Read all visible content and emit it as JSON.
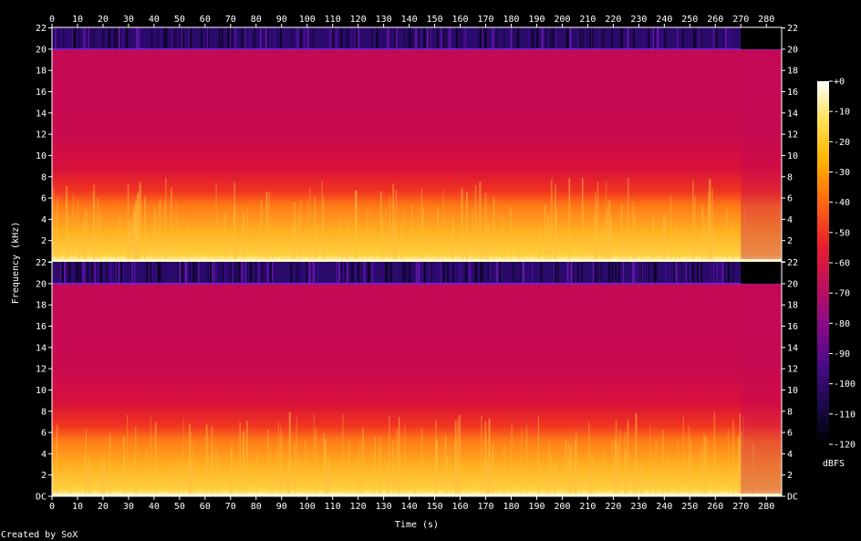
{
  "chart_data": {
    "type": "heatmap",
    "title": "",
    "xlabel": "Time (s)",
    "ylabel": "Frequency (kHz)",
    "xlim": [
      0,
      286
    ],
    "ylim": [
      0,
      22.05
    ],
    "x_ticks": [
      "0",
      "10",
      "20",
      "30",
      "40",
      "50",
      "60",
      "70",
      "80",
      "90",
      "100",
      "110",
      "120",
      "130",
      "140",
      "150",
      "160",
      "170",
      "180",
      "190",
      "200",
      "210",
      "220",
      "230",
      "240",
      "250",
      "260",
      "270",
      "280"
    ],
    "y_ticks": [
      "DC",
      "2",
      "4",
      "6",
      "8",
      "10",
      "12",
      "14",
      "16",
      "18",
      "20",
      "22"
    ],
    "channels": [
      {
        "name": "",
        "content_top_khz": 20,
        "band_edges_khz": [
          0.5,
          3,
          5.5,
          8
        ]
      },
      {
        "name": "",
        "content_top_khz": 20,
        "band_edges_khz": [
          0.5,
          3,
          5.5,
          8
        ]
      }
    ],
    "colorbar": {
      "label": "dBFS",
      "range": [
        -120,
        0
      ],
      "ticks": [
        "+0",
        "-10",
        "-20",
        "-30",
        "-40",
        "-50",
        "-60",
        "-70",
        "-80",
        "-90",
        "-100",
        "-110",
        "-120"
      ],
      "stops": [
        "#000000",
        "#1a0a4a",
        "#4b0a8a",
        "#8a0a88",
        "#c0105a",
        "#e8202c",
        "#ff6a10",
        "#ffb000",
        "#ffe050",
        "#ffffff"
      ]
    },
    "footer": "Created by SoX"
  }
}
